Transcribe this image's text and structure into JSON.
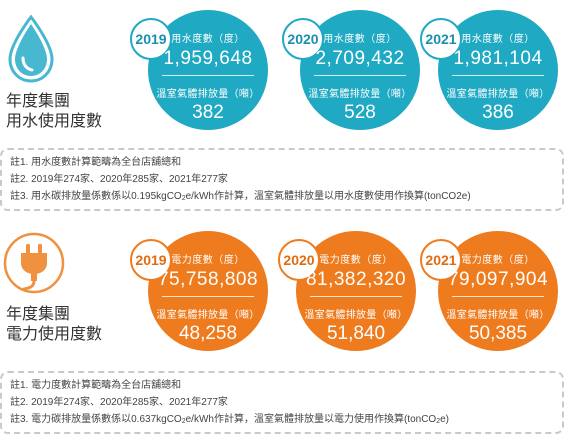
{
  "water": {
    "title_line1": "年度集團",
    "title_line2": "用水使用度數",
    "cards": [
      {
        "year": "2019",
        "label1": "用水度數（度）",
        "value1": "1,959,648",
        "label2": "溫室氣體排放量（噸）",
        "value2": "382"
      },
      {
        "year": "2020",
        "label1": "用水度數（度）",
        "value1": "2,709,432",
        "label2": "溫室氣體排放量（噸）",
        "value2": "528"
      },
      {
        "year": "2021",
        "label1": "用水度數（度）",
        "value1": "1,981,104",
        "label2": "溫室氣體排放量（噸）",
        "value2": "386"
      }
    ],
    "notes": {
      "n1": "註1. 用水度數計算範疇為全台店舖總和",
      "n2": "註2. 2019年274家、2020年285家、2021年277家",
      "n3_pre": "註3. 用水碳排放量係數係以0.195kgCO",
      "n3_sub": "2",
      "n3_post": "e/kWh作計算，溫室氣體排放量以用水度數使用作換算(tonCO2e)"
    },
    "icon": "water-drop-icon",
    "color": "#1fa9c3"
  },
  "power": {
    "title_line1": "年度集團",
    "title_line2": "電力使用度數",
    "cards": [
      {
        "year": "2019",
        "label1": "電力度數（度）",
        "value1": "75,758,808",
        "label2": "溫室氣體排放量（噸）",
        "value2": "48,258"
      },
      {
        "year": "2020",
        "label1": "電力度數（度）",
        "value1": "81,382,320",
        "label2": "溫室氣體排放量（噸）",
        "value2": "51,840"
      },
      {
        "year": "2021",
        "label1": "電力度數（度）",
        "value1": "79,097,904",
        "label2": "溫室氣體排放量（噸）",
        "value2": "50,385"
      }
    ],
    "notes": {
      "n1": "註1. 電力度數計算範疇為全台店舖總和",
      "n2": "註2. 2019年274家、2020年285家、2021年277家",
      "n3_pre": "註3. 電力碳排放量係數係以0.637kgCO",
      "n3_sub": "2",
      "n3_mid": "e/kWh作計算，溫室氣體排放量以電力使用作換算(tonCO",
      "n3_sub2": "2",
      "n3_post": "e)"
    },
    "icon": "power-plug-icon",
    "color": "#ee7b1e"
  }
}
